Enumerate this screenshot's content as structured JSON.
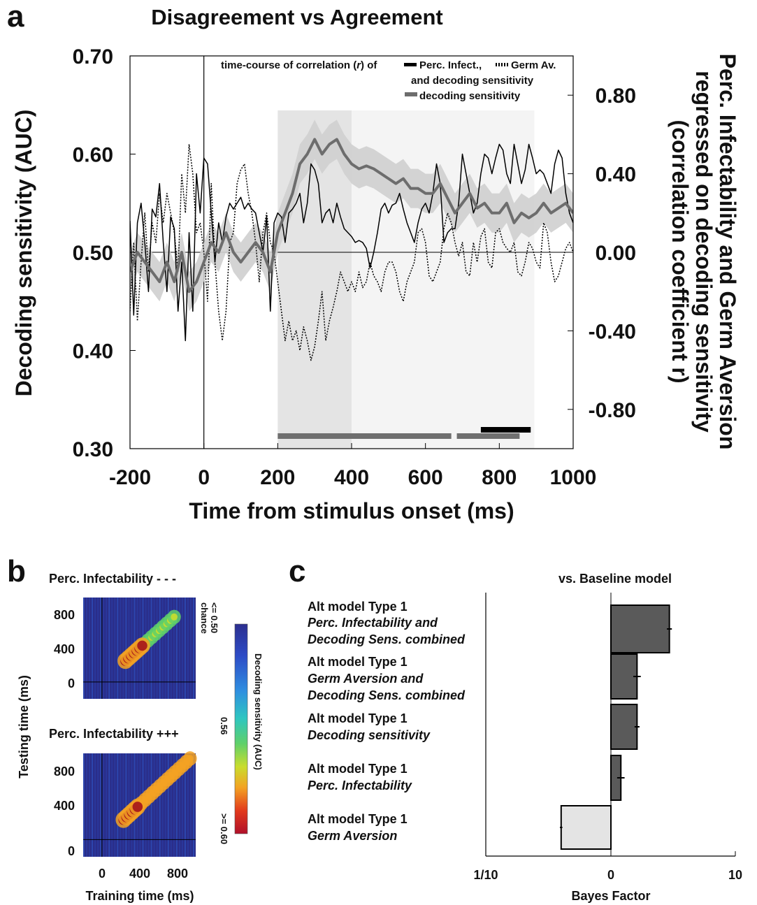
{
  "panel_a": {
    "letter": "a",
    "title": "Disagreement vs Agreement",
    "xlabel": "Time from stimulus onset (ms)",
    "ylabel": "Decoding sensitivity (AUC)",
    "y2label_lines": [
      "Perc. Infectability and Germ Aversion",
      "regressed on decoding sensitivity",
      "(correlation coefficient r)"
    ],
    "legend": {
      "line1_prefix": "time-course of correlation (",
      "line1_r": "r",
      "line1_mid": ") of",
      "perc_label": "Perc. Infect.,",
      "germ_label": "Germ Av.",
      "line2": "and decoding sensitivity",
      "decoding_label": "decoding sensitivity"
    }
  },
  "panel_b": {
    "letter": "b",
    "top_title": "Perc. Infectability - - -",
    "bottom_title": "Perc. Infectability +++",
    "xlabel": "Training time (ms)",
    "ylabel": "Testing time (ms)",
    "x_ticks": [
      "0",
      "400",
      "800"
    ],
    "y_ticks": [
      "800",
      "400",
      "0"
    ],
    "colorbar": {
      "label": "Decoding sensitivity (AUC)",
      "low_label_1": "<= 0.50",
      "low_label_2": "chance",
      "mid_label": "0.56",
      "high_label": ">= 0.60"
    }
  },
  "panel_c": {
    "letter": "c",
    "title": "vs. Baseline model",
    "xlabel": "Bayes Factor",
    "x_ticks": [
      "1/10",
      "0",
      "10"
    ],
    "models": [
      {
        "l1": "Alt model Type 1",
        "l2": "Perc. Infectability and",
        "l3": "Decoding Sens. combined"
      },
      {
        "l1": "Alt model Type 1",
        "l2": "Germ Aversion and",
        "l3": "Decoding Sens. combined"
      },
      {
        "l1": "Alt model Type 1",
        "l2": "Decoding sensitivity",
        "l3": ""
      },
      {
        "l1": "Alt model Type 1",
        "l2": "Perc. Infectability",
        "l3": ""
      },
      {
        "l1": "Alt model Type 1",
        "l2": "Germ Aversion",
        "l3": ""
      }
    ]
  },
  "chart_data": [
    {
      "type": "line",
      "panel": "a",
      "title": "Disagreement vs Agreement",
      "xlabel": "Time from stimulus onset (ms)",
      "ylabel": "Decoding sensitivity (AUC)",
      "xlim": [
        -200,
        1000
      ],
      "ylim": [
        0.3,
        0.7
      ],
      "y2lim": [
        -1.0,
        1.0
      ],
      "x_ticks": [
        -200,
        0,
        200,
        400,
        600,
        800,
        1000
      ],
      "x_tick_labels": [
        "-200",
        "0",
        "200",
        "400",
        "600",
        "800",
        "1000"
      ],
      "y_ticks": [
        0.3,
        0.4,
        0.5,
        0.6,
        0.7
      ],
      "y_tick_labels": [
        "0.30",
        "0.40",
        "0.50",
        "0.60",
        "0.70"
      ],
      "y2_ticks": [
        -0.8,
        -0.4,
        0.0,
        0.4,
        0.8
      ],
      "y2_tick_labels": [
        "-0.80",
        "-0.40",
        "0.00",
        "0.40",
        "0.80"
      ],
      "shaded_windows": [
        {
          "from": 200,
          "to": 400,
          "shade": "#e4e4e4"
        },
        {
          "from": 400,
          "to": 895,
          "shade": "#f4f4f4"
        }
      ],
      "significance_bars": [
        {
          "series": "decoding sensitivity",
          "from": 200,
          "to": 670,
          "color": "#6f6f6f"
        },
        {
          "series": "decoding sensitivity",
          "from": 685,
          "to": 855,
          "color": "#6f6f6f"
        },
        {
          "series": "Perc. Infect.",
          "from": 750,
          "to": 885,
          "color": "#000000"
        }
      ],
      "colors": {
        "decoding": "#6d6d6d",
        "decoding_band": "#cfcfcf",
        "perc": "#000000",
        "germ": "#000000"
      },
      "series": [
        {
          "name": "decoding sensitivity",
          "axis": "left",
          "style": "thick-grey",
          "band": 0.02,
          "x": [
            -200,
            -180,
            -160,
            -140,
            -120,
            -100,
            -80,
            -60,
            -40,
            -20,
            0,
            20,
            40,
            60,
            80,
            100,
            120,
            140,
            160,
            180,
            200,
            220,
            240,
            260,
            280,
            300,
            320,
            340,
            360,
            380,
            400,
            420,
            440,
            460,
            480,
            500,
            520,
            540,
            560,
            580,
            600,
            620,
            640,
            660,
            680,
            700,
            720,
            740,
            760,
            780,
            800,
            820,
            840,
            860,
            880,
            900,
            920,
            940,
            960,
            980,
            1000
          ],
          "y": [
            0.48,
            0.5,
            0.49,
            0.48,
            0.47,
            0.49,
            0.47,
            0.5,
            0.46,
            0.47,
            0.49,
            0.51,
            0.5,
            0.52,
            0.5,
            0.49,
            0.5,
            0.51,
            0.5,
            0.48,
            0.52,
            0.54,
            0.56,
            0.59,
            0.6,
            0.615,
            0.6,
            0.61,
            0.615,
            0.6,
            0.59,
            0.585,
            0.588,
            0.585,
            0.58,
            0.575,
            0.57,
            0.575,
            0.565,
            0.565,
            0.56,
            0.56,
            0.57,
            0.555,
            0.54,
            0.55,
            0.56,
            0.545,
            0.55,
            0.54,
            0.54,
            0.55,
            0.53,
            0.54,
            0.535,
            0.54,
            0.55,
            0.54,
            0.545,
            0.55,
            0.54
          ]
        },
        {
          "name": "Perc. Infect.",
          "axis": "right",
          "style": "solid",
          "x": [
            -200,
            -190,
            -180,
            -170,
            -160,
            -150,
            -140,
            -130,
            -120,
            -110,
            -100,
            -90,
            -80,
            -70,
            -60,
            -50,
            -40,
            -30,
            -20,
            -10,
            0,
            10,
            20,
            30,
            40,
            50,
            60,
            70,
            80,
            90,
            100,
            110,
            120,
            130,
            140,
            150,
            160,
            170,
            180,
            190,
            200,
            210,
            220,
            230,
            240,
            250,
            260,
            270,
            280,
            290,
            300,
            310,
            320,
            330,
            340,
            350,
            360,
            370,
            380,
            390,
            400,
            410,
            420,
            430,
            440,
            450,
            460,
            470,
            480,
            490,
            500,
            510,
            520,
            530,
            540,
            550,
            560,
            570,
            580,
            590,
            600,
            610,
            620,
            630,
            640,
            650,
            660,
            670,
            680,
            690,
            700,
            710,
            720,
            730,
            740,
            750,
            760,
            770,
            780,
            790,
            800,
            810,
            820,
            830,
            840,
            850,
            860,
            870,
            880,
            890,
            900,
            910,
            920,
            930,
            940,
            950,
            960,
            970,
            980,
            990,
            1000
          ],
          "y": [
            0.16,
            -0.32,
            0.15,
            0.25,
            0.05,
            -0.2,
            0.22,
            0.18,
            0.35,
            0.05,
            -0.2,
            0.18,
            0.12,
            -0.3,
            -0.05,
            -0.45,
            0.1,
            -0.3,
            0.4,
            0.2,
            0.48,
            0.45,
            0.2,
            -0.05,
            0.15,
            0.05,
            0.18,
            0.25,
            0.22,
            0.25,
            0.28,
            0.22,
            0.25,
            0.22,
            0.2,
            0.1,
            0.0,
            0.18,
            -0.3,
            0.15,
            0.2,
            0.18,
            0.05,
            0.2,
            0.22,
            0.25,
            0.3,
            0.15,
            0.25,
            0.45,
            0.42,
            0.35,
            0.15,
            0.2,
            0.22,
            0.15,
            0.25,
            0.18,
            0.12,
            0.1,
            0.08,
            0.05,
            0.06,
            0.05,
            0.02,
            -0.08,
            0.0,
            0.1,
            0.22,
            0.25,
            0.2,
            0.24,
            0.25,
            0.3,
            0.22,
            0.15,
            0.1,
            0.05,
            0.15,
            0.22,
            0.25,
            0.2,
            0.3,
            0.45,
            0.35,
            0.05,
            0.1,
            0.12,
            0.12,
            0.25,
            0.5,
            0.4,
            0.3,
            0.2,
            0.25,
            0.4,
            0.5,
            0.48,
            0.4,
            0.48,
            0.55,
            0.52,
            0.4,
            0.35,
            0.55,
            0.45,
            0.35,
            0.42,
            0.55,
            0.48,
            0.4,
            0.42,
            0.4,
            0.35,
            0.3,
            0.45,
            0.52,
            0.48,
            0.3,
            0.2,
            0.15
          ]
        },
        {
          "name": "Germ Av.",
          "axis": "right",
          "style": "dotted",
          "x": [
            -200,
            -190,
            -180,
            -170,
            -160,
            -150,
            -140,
            -130,
            -120,
            -110,
            -100,
            -90,
            -80,
            -70,
            -60,
            -50,
            -40,
            -30,
            -20,
            -10,
            0,
            10,
            20,
            30,
            40,
            50,
            60,
            70,
            80,
            90,
            100,
            110,
            120,
            130,
            140,
            150,
            160,
            170,
            180,
            190,
            200,
            210,
            220,
            230,
            240,
            250,
            260,
            270,
            280,
            290,
            300,
            310,
            320,
            330,
            340,
            350,
            360,
            370,
            380,
            390,
            400,
            410,
            420,
            430,
            440,
            450,
            460,
            470,
            480,
            490,
            500,
            510,
            520,
            530,
            540,
            550,
            560,
            570,
            580,
            590,
            600,
            610,
            620,
            630,
            640,
            650,
            660,
            670,
            680,
            690,
            700,
            710,
            720,
            730,
            740,
            750,
            760,
            770,
            780,
            790,
            800,
            810,
            820,
            830,
            840,
            850,
            860,
            870,
            880,
            890,
            900,
            910,
            920,
            930,
            940,
            950,
            960,
            970,
            980,
            990,
            1000
          ],
          "y": [
            -0.3,
            0.05,
            -0.35,
            -0.05,
            0.2,
            -0.1,
            0.15,
            0.05,
            0.3,
            0.15,
            0.3,
            0.2,
            0.1,
            -0.1,
            0.4,
            0.2,
            0.55,
            0.4,
            0.1,
            0.15,
            0.0,
            -0.25,
            0.35,
            -0.05,
            -0.3,
            -0.45,
            -0.3,
            0.05,
            0.1,
            0.35,
            0.42,
            0.45,
            0.3,
            0.2,
            0.05,
            -0.15,
            0.1,
            0.2,
            0.05,
            0.0,
            -0.15,
            -0.3,
            -0.45,
            -0.35,
            -0.45,
            -0.4,
            -0.5,
            -0.38,
            -0.45,
            -0.55,
            -0.48,
            -0.35,
            -0.2,
            -0.45,
            -0.35,
            -0.28,
            -0.2,
            -0.1,
            -0.15,
            -0.2,
            -0.15,
            -0.2,
            -0.1,
            -0.18,
            -0.15,
            -0.05,
            -0.12,
            -0.15,
            -0.2,
            -0.1,
            -0.05,
            -0.05,
            -0.1,
            -0.2,
            -0.25,
            -0.15,
            -0.1,
            -0.05,
            0.1,
            0.12,
            0.05,
            -0.12,
            -0.15,
            -0.1,
            -0.05,
            0.12,
            0.2,
            0.15,
            0.05,
            -0.02,
            0.05,
            -0.1,
            -0.12,
            0.05,
            -0.05,
            0.08,
            0.12,
            -0.05,
            -0.08,
            0.1,
            0.12,
            0.05,
            0.02,
            0.0,
            0.05,
            -0.1,
            -0.12,
            -0.05,
            0.05,
            0.02,
            -0.05,
            -0.08,
            0.15,
            0.1,
            -0.05,
            -0.15,
            -0.12,
            -0.05,
            0.02,
            0.05,
            0.0
          ]
        }
      ]
    },
    {
      "type": "heatmap",
      "panel": "b-top",
      "title": "Perc. Infectability - - -",
      "xlabel": "Training time (ms)",
      "ylabel": "Testing time (ms)",
      "xlim": [
        -200,
        1000
      ],
      "ylim": [
        -200,
        1000
      ],
      "clim": [
        0.5,
        0.6
      ],
      "diagonal_peak": {
        "from": 250,
        "to": 450,
        "value": 0.6
      },
      "diagonal_plateau": {
        "from": 450,
        "to": 800,
        "value": 0.55
      }
    },
    {
      "type": "heatmap",
      "panel": "b-bottom",
      "title": "Perc. Infectability +++",
      "xlabel": "Training time (ms)",
      "ylabel": "Testing time (ms)",
      "xlim": [
        -200,
        1000
      ],
      "ylim": [
        -200,
        1000
      ],
      "clim": [
        0.5,
        0.6
      ],
      "diagonal_peak": {
        "from": 230,
        "to": 380,
        "value": 0.62
      },
      "diagonal_plateau": {
        "from": 380,
        "to": 950,
        "value": 0.58
      }
    },
    {
      "type": "bar",
      "panel": "c",
      "orientation": "horizontal",
      "title": "vs. Baseline model",
      "xlabel": "Bayes Factor",
      "xlim": [
        -10,
        10
      ],
      "x_ticks": [
        "1/10",
        "0",
        "10"
      ],
      "categories": [
        "Perc. Infectability and Decoding Sens. combined",
        "Germ Aversion and Decoding Sens. combined",
        "Decoding sensitivity",
        "Perc. Infectability",
        "Germ Aversion"
      ],
      "values": [
        4.7,
        2.1,
        2.1,
        0.8,
        -4.0
      ],
      "errors": [
        0.2,
        0.3,
        0.2,
        0.3,
        0.1
      ],
      "colors": [
        "#5a5a5a",
        "#5a5a5a",
        "#5a5a5a",
        "#5a5a5a",
        "#e4e4e4"
      ]
    }
  ]
}
